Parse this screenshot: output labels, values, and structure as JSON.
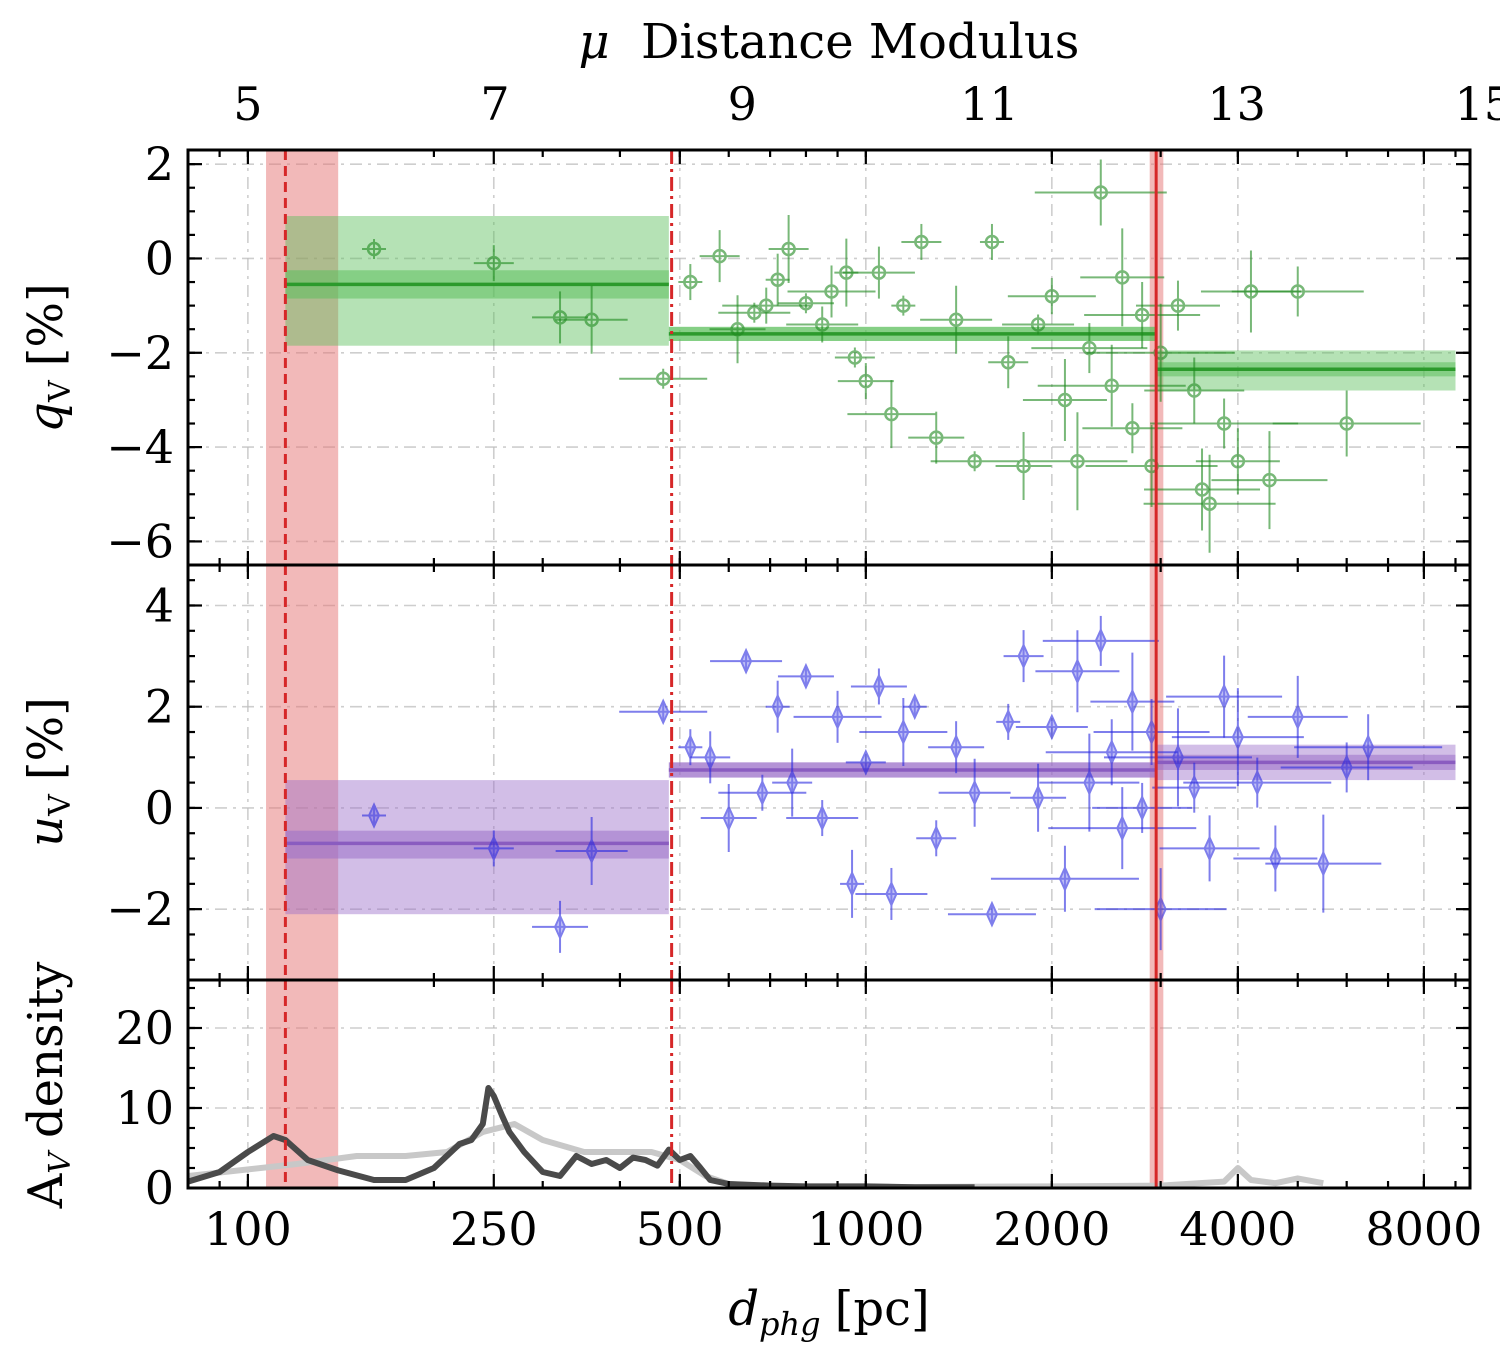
{
  "chart_data": [
    {
      "type": "scatter",
      "panel": "top",
      "ylabel_main": "q",
      "ylabel_sub": "V",
      "ylabel_unit": "[%]",
      "ylim": [
        -6.5,
        2.3
      ],
      "yticks": [
        2,
        0,
        -2,
        -4,
        -6
      ],
      "ytick_labels": [
        "2",
        "0",
        "−2",
        "−4",
        "−6"
      ],
      "top_axis": {
        "title_prefix": "μ",
        "title": "Distance Modulus",
        "ticks": [
          5,
          7,
          9,
          11,
          13,
          15
        ],
        "tick_labels": [
          "5",
          "7",
          "9",
          "11",
          "13",
          "15"
        ]
      },
      "color": "#1f8a1f",
      "segments": [
        {
          "x0": 115,
          "x1": 480,
          "mean": -0.55,
          "inner": [
            -0.85,
            -0.25
          ],
          "outer": [
            -1.85,
            0.9
          ]
        },
        {
          "x0": 480,
          "x1": 2950,
          "mean": -1.6,
          "inner": [
            -1.75,
            -1.45
          ],
          "outer": [
            -1.75,
            -1.45
          ]
        },
        {
          "x0": 2950,
          "x1": 9000,
          "mean": -2.35,
          "inner": [
            -2.5,
            -2.2
          ],
          "outer": [
            -2.8,
            -1.95
          ]
        }
      ],
      "points": [
        [
          160,
          0.2
        ],
        [
          250,
          -0.1
        ],
        [
          320,
          -1.25
        ],
        [
          360,
          -1.3
        ],
        [
          470,
          -2.55
        ],
        [
          520,
          -0.5
        ],
        [
          580,
          0.05
        ],
        [
          620,
          -1.5
        ],
        [
          660,
          -1.15
        ],
        [
          690,
          -1.0
        ],
        [
          720,
          -0.45
        ],
        [
          750,
          0.2
        ],
        [
          800,
          -0.95
        ],
        [
          850,
          -1.4
        ],
        [
          880,
          -0.7
        ],
        [
          930,
          -0.3
        ],
        [
          960,
          -2.1
        ],
        [
          1000,
          -2.6
        ],
        [
          1050,
          -0.3
        ],
        [
          1100,
          -3.3
        ],
        [
          1150,
          -1.0
        ],
        [
          1230,
          0.35
        ],
        [
          1300,
          -3.8
        ],
        [
          1400,
          -1.3
        ],
        [
          1500,
          -4.3
        ],
        [
          1600,
          0.35
        ],
        [
          1700,
          -2.2
        ],
        [
          1800,
          -4.4
        ],
        [
          1900,
          -1.4
        ],
        [
          2000,
          -0.8
        ],
        [
          2100,
          -3.0
        ],
        [
          2200,
          -4.3
        ],
        [
          2300,
          -1.9
        ],
        [
          2400,
          1.4
        ],
        [
          2500,
          -2.7
        ],
        [
          2600,
          -0.4
        ],
        [
          2700,
          -3.6
        ],
        [
          2800,
          -1.2
        ],
        [
          2900,
          -4.4
        ],
        [
          3000,
          -2.0
        ],
        [
          3200,
          -1.0
        ],
        [
          3400,
          -2.8
        ],
        [
          3500,
          -4.9
        ],
        [
          3600,
          -5.2
        ],
        [
          3800,
          -3.5
        ],
        [
          4000,
          -4.3
        ],
        [
          4200,
          -0.7
        ],
        [
          4500,
          -4.7
        ],
        [
          5000,
          -0.7
        ],
        [
          6000,
          -3.5
        ]
      ],
      "vlines": [
        {
          "x": 115,
          "style": "dashed",
          "band": [
            107,
            140
          ]
        },
        {
          "x": 485,
          "style": "dashdot"
        },
        {
          "x": 2950,
          "style": "solid",
          "band": [
            2880,
            3030
          ]
        }
      ]
    },
    {
      "type": "scatter",
      "panel": "middle",
      "ylabel_main": "u",
      "ylabel_sub": "V",
      "ylabel_unit": "[%]",
      "ylim": [
        -3.4,
        4.8
      ],
      "yticks": [
        4,
        2,
        0,
        -2
      ],
      "ytick_labels": [
        "4",
        "2",
        "0",
        "−2"
      ],
      "color": "#2a2ae0",
      "segments": [
        {
          "x0": 115,
          "x1": 480,
          "mean": -0.7,
          "inner": [
            -1.0,
            -0.45
          ],
          "outer": [
            -2.1,
            0.55
          ]
        },
        {
          "x0": 480,
          "x1": 2950,
          "mean": 0.75,
          "inner": [
            0.6,
            0.9
          ],
          "outer": [
            0.6,
            0.9
          ]
        },
        {
          "x0": 2950,
          "x1": 9000,
          "mean": 0.9,
          "inner": [
            0.75,
            1.05
          ],
          "outer": [
            0.55,
            1.25
          ]
        }
      ],
      "points": [
        [
          160,
          -0.15
        ],
        [
          250,
          -0.8
        ],
        [
          320,
          -2.35
        ],
        [
          360,
          -0.85
        ],
        [
          470,
          1.9
        ],
        [
          520,
          1.2
        ],
        [
          560,
          1.0
        ],
        [
          600,
          -0.2
        ],
        [
          640,
          2.9
        ],
        [
          680,
          0.3
        ],
        [
          720,
          2.0
        ],
        [
          760,
          0.5
        ],
        [
          800,
          2.6
        ],
        [
          850,
          -0.2
        ],
        [
          900,
          1.8
        ],
        [
          950,
          -1.5
        ],
        [
          1000,
          0.9
        ],
        [
          1050,
          2.4
        ],
        [
          1100,
          -1.7
        ],
        [
          1150,
          1.5
        ],
        [
          1200,
          2.0
        ],
        [
          1300,
          -0.6
        ],
        [
          1400,
          1.2
        ],
        [
          1500,
          0.3
        ],
        [
          1600,
          -2.1
        ],
        [
          1700,
          1.7
        ],
        [
          1800,
          3.0
        ],
        [
          1900,
          0.2
        ],
        [
          2000,
          1.6
        ],
        [
          2100,
          -1.4
        ],
        [
          2200,
          2.7
        ],
        [
          2300,
          0.5
        ],
        [
          2400,
          3.3
        ],
        [
          2500,
          1.1
        ],
        [
          2600,
          -0.4
        ],
        [
          2700,
          2.1
        ],
        [
          2800,
          0.0
        ],
        [
          2900,
          1.5
        ],
        [
          3000,
          -2.0
        ],
        [
          3200,
          1.0
        ],
        [
          3400,
          0.4
        ],
        [
          3600,
          -0.8
        ],
        [
          3800,
          2.2
        ],
        [
          4000,
          1.4
        ],
        [
          4300,
          0.5
        ],
        [
          4600,
          -1.0
        ],
        [
          5000,
          1.8
        ],
        [
          5500,
          -1.1
        ],
        [
          6000,
          0.8
        ],
        [
          6500,
          1.2
        ]
      ],
      "vlines": [
        {
          "x": 115,
          "style": "dashed",
          "band": [
            107,
            140
          ]
        },
        {
          "x": 485,
          "style": "dashdot"
        },
        {
          "x": 2950,
          "style": "solid",
          "band": [
            2880,
            3030
          ]
        }
      ]
    },
    {
      "type": "line",
      "panel": "bottom",
      "ylabel": "A",
      "ylabel_sub": "V",
      "ylabel_suffix": "density",
      "xlabel_main": "d",
      "xlabel_sub": "phg",
      "xlabel_unit": "[pc]",
      "xscale": "log",
      "xlim": [
        80,
        9500
      ],
      "xticks": [
        100,
        250,
        500,
        1000,
        2000,
        4000,
        8000
      ],
      "xtick_labels": [
        "100",
        "250",
        "500",
        "1000",
        "2000",
        "4000",
        "8000"
      ],
      "ylim": [
        0,
        26
      ],
      "yticks": [
        20,
        10,
        0
      ],
      "ytick_labels": [
        "20",
        "10",
        "0"
      ],
      "series": [
        {
          "color": "#4a4a4a",
          "x": [
            80,
            90,
            100,
            110,
            115,
            125,
            140,
            160,
            180,
            200,
            220,
            230,
            240,
            245,
            250,
            258,
            265,
            280,
            300,
            320,
            340,
            360,
            380,
            400,
            420,
            440,
            460,
            480,
            500,
            520,
            540,
            560,
            600,
            700,
            800,
            1000,
            1200,
            1500
          ],
          "y": [
            0.8,
            2.0,
            4.5,
            6.5,
            6.0,
            3.5,
            2.2,
            1.0,
            1.0,
            2.5,
            5.5,
            6.0,
            8.0,
            12.5,
            11.5,
            9.0,
            7.0,
            4.5,
            2.0,
            1.5,
            4.0,
            3.0,
            3.5,
            2.5,
            3.8,
            3.5,
            2.8,
            4.8,
            3.5,
            4.0,
            2.5,
            1.0,
            0.5,
            0.3,
            0.2,
            0.2,
            0.1,
            0.1
          ]
        },
        {
          "color": "#c8c8c8",
          "x": [
            80,
            120,
            150,
            180,
            210,
            240,
            270,
            300,
            350,
            400,
            450,
            500,
            550,
            600,
            700,
            1000,
            2000,
            3000,
            3800,
            4000,
            4200,
            4600,
            5000,
            5500
          ],
          "y": [
            1.5,
            3.0,
            4.0,
            4.0,
            4.5,
            7.0,
            8.0,
            6.0,
            4.5,
            4.5,
            4.5,
            3.5,
            1.5,
            0.5,
            0.2,
            0.1,
            0.2,
            0.3,
            0.8,
            2.5,
            1.0,
            0.6,
            1.2,
            0.6
          ]
        }
      ],
      "vlines": [
        {
          "x": 115,
          "style": "dashed",
          "band": [
            107,
            140
          ]
        },
        {
          "x": 485,
          "style": "dashdot"
        },
        {
          "x": 2950,
          "style": "solid",
          "band": [
            2880,
            3030
          ]
        }
      ]
    }
  ]
}
